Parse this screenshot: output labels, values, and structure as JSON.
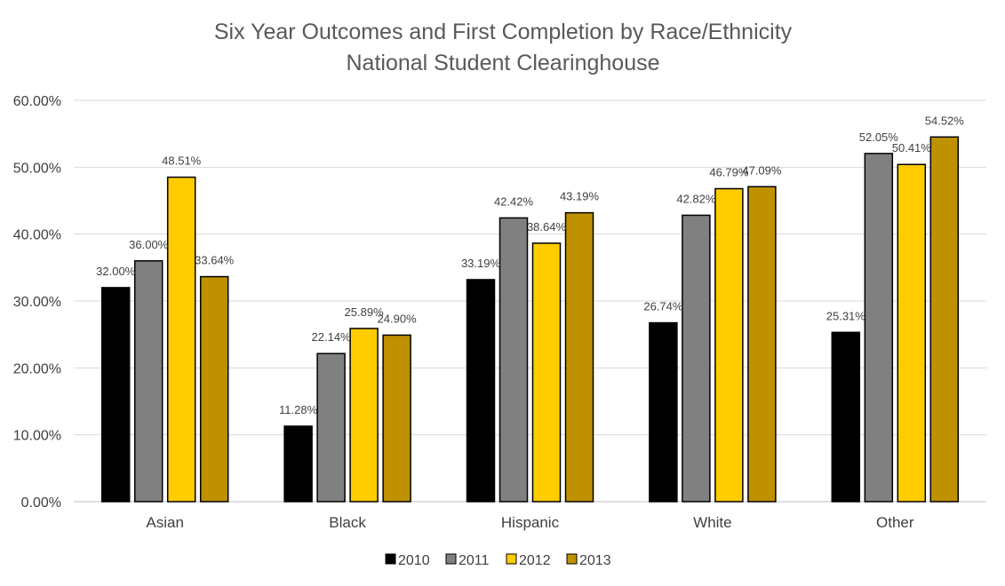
{
  "chart_data": {
    "type": "bar",
    "title": "Six Year Outcomes and First Completion by Race/Ethnicity",
    "subtitle": "National Student Clearinghouse",
    "xlabel": "",
    "ylabel": "",
    "categories": [
      "Asian",
      "Black",
      "Hispanic",
      "White",
      "Other"
    ],
    "ylim": [
      0,
      60
    ],
    "yticks": [
      0,
      10,
      20,
      30,
      40,
      50,
      60
    ],
    "ytick_labels": [
      "0.00%",
      "10.00%",
      "20.00%",
      "30.00%",
      "40.00%",
      "50.00%",
      "60.00%"
    ],
    "grid": true,
    "legend": "bottom",
    "series": [
      {
        "name": "2010",
        "color": "#000000",
        "values": [
          32.0,
          11.28,
          33.19,
          26.74,
          25.31
        ],
        "labels": [
          "32.00%",
          "11.28%",
          "33.19%",
          "26.74%",
          "25.31%"
        ]
      },
      {
        "name": "2011",
        "color": "#808080",
        "values": [
          36.0,
          22.14,
          42.42,
          42.82,
          52.05
        ],
        "labels": [
          "36.00%",
          "22.14%",
          "42.42%",
          "42.82%",
          "52.05%"
        ]
      },
      {
        "name": "2012",
        "color": "#FFCC00",
        "values": [
          48.51,
          25.89,
          38.64,
          46.79,
          50.41
        ],
        "labels": [
          "48.51%",
          "25.89%",
          "38.64%",
          "46.79%",
          "50.41%"
        ]
      },
      {
        "name": "2013",
        "color": "#BF9000",
        "values": [
          33.64,
          24.9,
          43.19,
          47.09,
          54.52
        ],
        "labels": [
          "33.64%",
          "24.90%",
          "43.19%",
          "47.09%",
          "54.52%"
        ]
      }
    ]
  }
}
